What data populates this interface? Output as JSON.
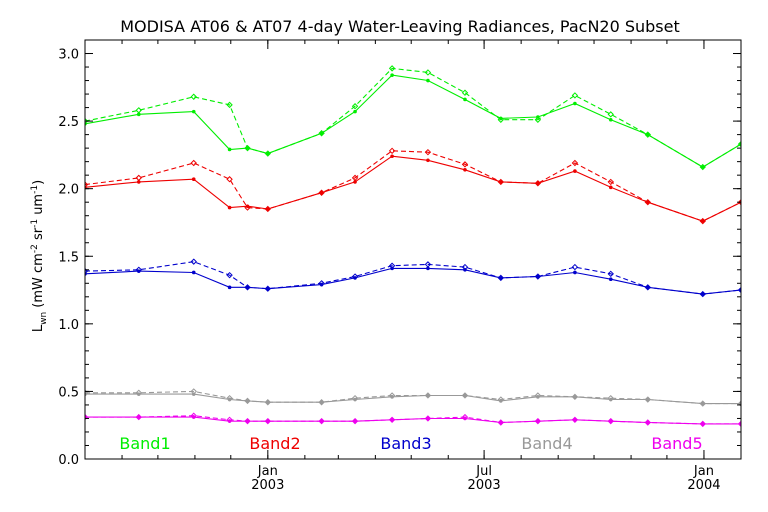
{
  "chart_data": {
    "type": "line",
    "title": "MODISA AT06 & AT07 4-day Water-Leaving Radiances, PacN20 Subset",
    "ylabel": "L",
    "ylabel_sub": "wn",
    "ylabel_units": "(mW cm",
    "ylabel_exp1": "-2",
    "ylabel_mid": " sr",
    "ylabel_exp2": "-1",
    "ylabel_end": " um",
    "ylabel_exp3": "-1",
    "ylabel_close": ")",
    "xlim": [
      "2002-08-01",
      "2004-02-01"
    ],
    "ylim": [
      0.0,
      3.1
    ],
    "y_ticks": [
      "0.0",
      "0.5",
      "1.0",
      "1.5",
      "2.0",
      "2.5",
      "3.0"
    ],
    "x_ticks": [
      {
        "date": "2003-01-01",
        "line1": "Jan",
        "line2": "2003"
      },
      {
        "date": "2003-07-01",
        "line1": "Jul",
        "line2": "2003"
      },
      {
        "date": "2004-01-01",
        "line1": "Jan",
        "line2": "2004"
      }
    ],
    "x": [
      "2002-08-01",
      "2002-09-15",
      "2002-10-31",
      "2002-11-30",
      "2002-12-15",
      "2003-01-01",
      "2003-02-15",
      "2003-03-15",
      "2003-04-15",
      "2003-05-15",
      "2003-06-15",
      "2003-07-15",
      "2003-08-15",
      "2003-09-15",
      "2003-10-15",
      "2003-11-15",
      "2003-12-31",
      "2004-02-01"
    ],
    "series": [
      {
        "name": "Band1",
        "color": "#00ee00",
        "at06": [
          2.48,
          2.55,
          2.57,
          2.29,
          2.3,
          2.26,
          2.41,
          2.57,
          2.84,
          2.8,
          2.66,
          2.52,
          2.53,
          2.63,
          2.51,
          2.4,
          2.16,
          2.33
        ],
        "at07": [
          2.5,
          2.58,
          2.68,
          2.62,
          2.3,
          2.26,
          2.41,
          2.61,
          2.89,
          2.86,
          2.71,
          2.51,
          2.51,
          2.69,
          2.55,
          2.4,
          2.16,
          2.33
        ]
      },
      {
        "name": "Band2",
        "color": "#ee0000",
        "at06": [
          2.01,
          2.05,
          2.07,
          1.86,
          1.87,
          1.85,
          1.97,
          2.05,
          2.24,
          2.21,
          2.14,
          2.05,
          2.04,
          2.13,
          2.01,
          1.9,
          1.76,
          1.9
        ],
        "at07": [
          2.03,
          2.08,
          2.19,
          2.07,
          1.86,
          1.85,
          1.97,
          2.08,
          2.28,
          2.27,
          2.18,
          2.05,
          2.04,
          2.19,
          2.05,
          1.9,
          1.76,
          1.9
        ]
      },
      {
        "name": "Band3",
        "color": "#0000cc",
        "at06": [
          1.37,
          1.39,
          1.38,
          1.27,
          1.27,
          1.26,
          1.29,
          1.34,
          1.41,
          1.41,
          1.4,
          1.34,
          1.35,
          1.38,
          1.33,
          1.27,
          1.22,
          1.25
        ],
        "at07": [
          1.39,
          1.4,
          1.46,
          1.36,
          1.27,
          1.26,
          1.3,
          1.35,
          1.43,
          1.44,
          1.42,
          1.34,
          1.35,
          1.42,
          1.37,
          1.27,
          1.22,
          1.25
        ]
      },
      {
        "name": "Band4",
        "color": "#999999",
        "at06": [
          0.48,
          0.48,
          0.48,
          0.44,
          0.43,
          0.42,
          0.42,
          0.44,
          0.46,
          0.47,
          0.47,
          0.43,
          0.46,
          0.46,
          0.44,
          0.44,
          0.41,
          0.41
        ],
        "at07": [
          0.49,
          0.49,
          0.5,
          0.45,
          0.43,
          0.42,
          0.42,
          0.45,
          0.47,
          0.47,
          0.47,
          0.44,
          0.47,
          0.46,
          0.45,
          0.44,
          0.41,
          0.41
        ]
      },
      {
        "name": "Band5",
        "color": "#ee00ee",
        "at06": [
          0.31,
          0.31,
          0.31,
          0.28,
          0.28,
          0.28,
          0.28,
          0.28,
          0.29,
          0.3,
          0.3,
          0.27,
          0.28,
          0.29,
          0.28,
          0.27,
          0.26,
          0.26
        ],
        "at07": [
          0.31,
          0.31,
          0.32,
          0.29,
          0.28,
          0.28,
          0.28,
          0.28,
          0.29,
          0.3,
          0.31,
          0.27,
          0.28,
          0.29,
          0.28,
          0.27,
          0.26,
          0.26
        ]
      }
    ],
    "legend_placement": "bottom"
  }
}
